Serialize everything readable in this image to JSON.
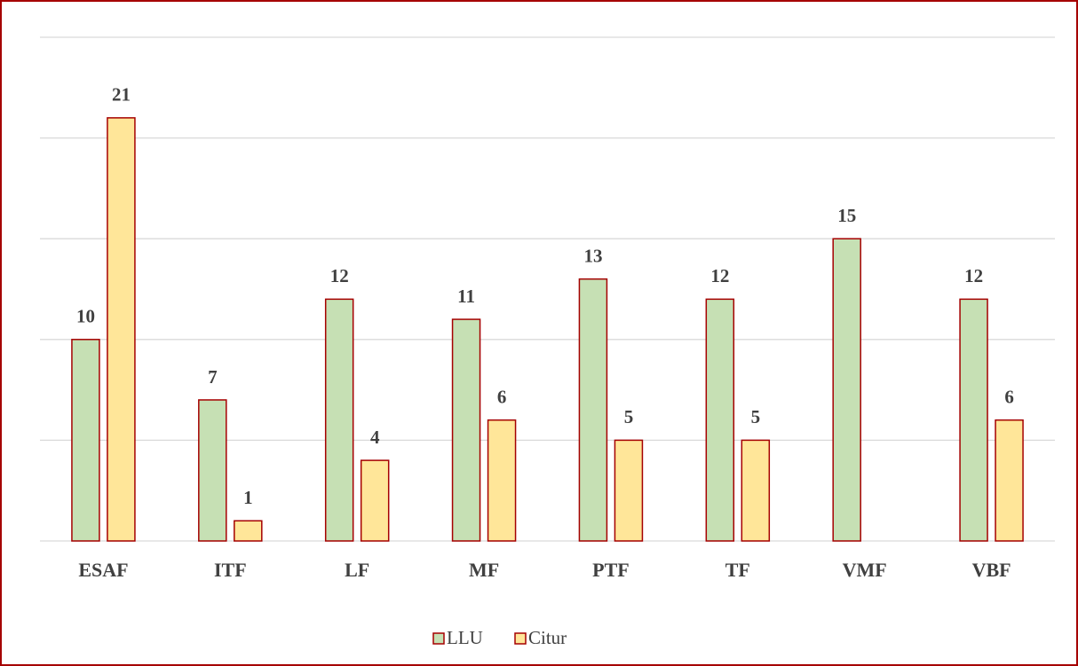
{
  "chart_data": {
    "type": "bar",
    "categories": [
      "ESAF",
      "ITF",
      "LF",
      "MF",
      "PTF",
      "TF",
      "VMF",
      "VBF"
    ],
    "series": [
      {
        "name": "LLU",
        "color": "#c6e0b4",
        "values": [
          10,
          7,
          12,
          11,
          13,
          12,
          15,
          12
        ]
      },
      {
        "name": "Citur",
        "color": "#ffe699",
        "values": [
          21,
          1,
          4,
          6,
          5,
          5,
          null,
          6
        ]
      }
    ],
    "edge_color": "#a50000",
    "ylim": [
      0,
      25
    ],
    "yticks": [
      0,
      5,
      10,
      15,
      20,
      25
    ],
    "grid": true,
    "legend": "bottom"
  }
}
